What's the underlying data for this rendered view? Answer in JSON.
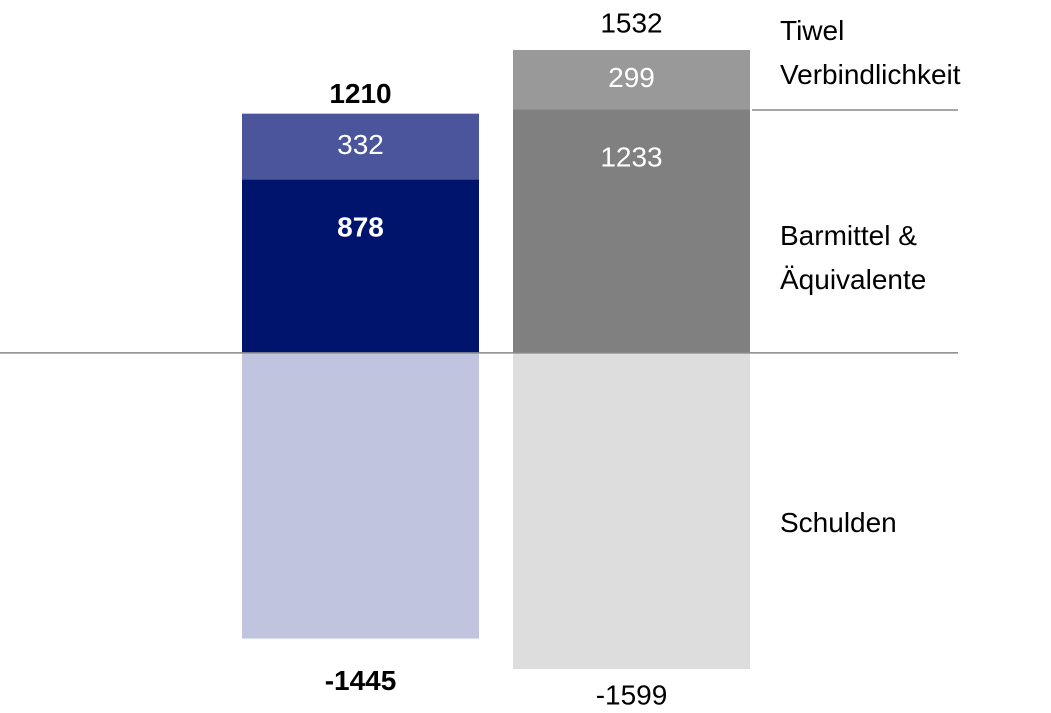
{
  "chart_data": {
    "type": "bar",
    "stacked": true,
    "categories": [
      null,
      null
    ],
    "series": [
      {
        "name": "Barmittel &\nÄquivalente",
        "colors": [
          "#00146e",
          "#808080"
        ],
        "values": [
          878,
          1233
        ]
      },
      {
        "name": "Tiwel\nVerbindlichkeit",
        "colors": [
          "#4a559b",
          "#999999"
        ],
        "values": [
          332,
          299
        ]
      },
      {
        "name": "Schulden",
        "colors": [
          "#c0c4de",
          "#dddddd"
        ],
        "values": [
          -1445,
          -1599
        ]
      }
    ],
    "totals": [
      1210,
      1532
    ]
  }
}
